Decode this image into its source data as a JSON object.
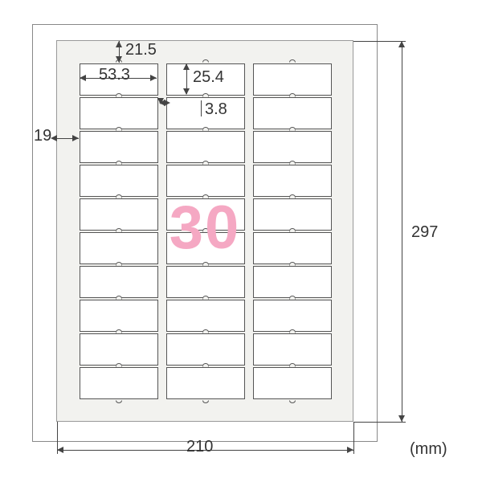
{
  "diagram": {
    "type": "label-sheet-dimension-diagram",
    "sheet_width_mm": 210,
    "sheet_height_mm": 297,
    "columns": 3,
    "rows": 10,
    "label_count": 30,
    "label_width_mm": 53.3,
    "label_height_mm": 25.4,
    "top_margin_mm": 21.5,
    "left_margin_mm": 19,
    "column_gap_mm": 3.8,
    "unit_label": "(mm)",
    "colors": {
      "background": "#ffffff",
      "sheet_bg": "#f2f2ef",
      "label_bg": "#ffffff",
      "border": "#555555",
      "dim_text": "#333333",
      "big_number": "#f5a8c3"
    },
    "big_number_text": "30",
    "dim_labels": {
      "top_margin": "21.5",
      "label_width": "53.3",
      "label_height": "25.4",
      "col_gap": "3.8",
      "left_margin": "19",
      "sheet_width": "210",
      "sheet_height": "297"
    }
  }
}
